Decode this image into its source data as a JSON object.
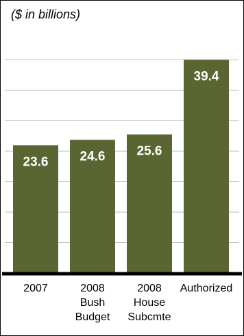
{
  "chart_data": {
    "type": "bar",
    "subtitle": "($ in billions)",
    "categories": [
      [
        "2007"
      ],
      [
        "2008",
        "Bush",
        "Budget"
      ],
      [
        "2008",
        "House",
        "Subcmte"
      ],
      [
        "Authorized"
      ]
    ],
    "values": [
      23.6,
      24.6,
      25.6,
      39.4
    ],
    "value_labels": [
      "23.6",
      "24.6",
      "25.6",
      "39.4"
    ],
    "ylim": [
      0,
      45
    ],
    "grid": true,
    "bar_color": "#5a6632",
    "label_color": "#ffffff",
    "axis_color": "#000000",
    "grid_color": "#bbbbbb"
  }
}
